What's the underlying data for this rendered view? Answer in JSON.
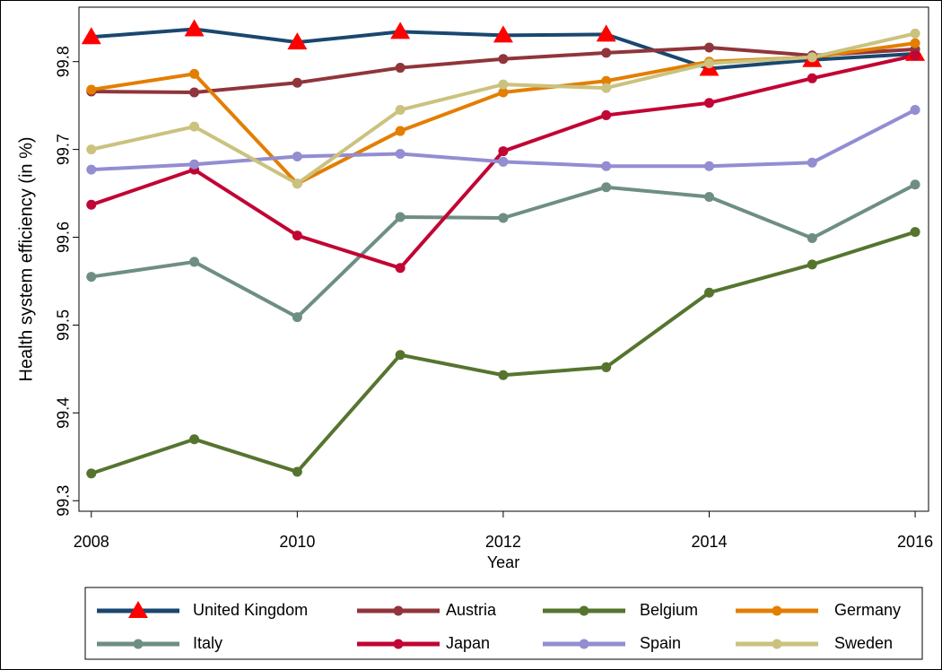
{
  "chart_data": {
    "type": "line",
    "x_label": "Year",
    "y_label": "Health system efficiency (in %)",
    "x": [
      2008,
      2009,
      2010,
      2011,
      2012,
      2013,
      2014,
      2015,
      2016
    ],
    "xlim": [
      2007.88,
      2016.13
    ],
    "xticks": [
      2008,
      2010,
      2012,
      2014,
      2016
    ],
    "ylim": [
      99.288,
      99.862
    ],
    "yticks": [
      99.3,
      99.4,
      99.5,
      99.6,
      99.7,
      99.8
    ],
    "grid": false,
    "legend": "bottom",
    "series": [
      {
        "name": "United Kingdom",
        "color": "#1a476f",
        "marker": "triangle",
        "marker_color": "#ff0000",
        "values": [
          99.828,
          99.837,
          99.822,
          99.834,
          99.83,
          99.831,
          99.792,
          99.802,
          99.809
        ]
      },
      {
        "name": "Austria",
        "color": "#90353b",
        "marker": "circle",
        "marker_color": "#90353b",
        "values": [
          99.766,
          99.765,
          99.776,
          99.793,
          99.803,
          99.81,
          99.816,
          99.807,
          99.814
        ]
      },
      {
        "name": "Belgium",
        "color": "#55752f",
        "marker": "circle",
        "marker_color": "#55752f",
        "values": [
          99.331,
          99.37,
          99.333,
          99.466,
          99.443,
          99.452,
          99.537,
          99.569,
          99.606
        ]
      },
      {
        "name": "Germany",
        "color": "#e37e00",
        "marker": "circle",
        "marker_color": "#e37e00",
        "values": [
          99.768,
          99.786,
          99.661,
          99.721,
          99.765,
          99.778,
          99.8,
          99.805,
          99.821
        ]
      },
      {
        "name": "Italy",
        "color": "#6e8e84",
        "marker": "circle",
        "marker_color": "#6e8e84",
        "values": [
          99.555,
          99.572,
          99.509,
          99.623,
          99.622,
          99.657,
          99.646,
          99.599,
          99.66
        ]
      },
      {
        "name": "Japan",
        "color": "#c10534",
        "marker": "circle",
        "marker_color": "#c10534",
        "values": [
          99.637,
          99.677,
          99.602,
          99.565,
          99.698,
          99.739,
          99.753,
          99.781,
          99.807
        ]
      },
      {
        "name": "Spain",
        "color": "#938dd2",
        "marker": "circle",
        "marker_color": "#938dd2",
        "values": [
          99.677,
          99.683,
          99.692,
          99.695,
          99.686,
          99.681,
          99.681,
          99.685,
          99.745
        ]
      },
      {
        "name": "Sweden",
        "color": "#cac27e",
        "marker": "circle",
        "marker_color": "#cac27e",
        "values": [
          99.7,
          99.726,
          99.661,
          99.745,
          99.774,
          99.77,
          99.798,
          99.805,
          99.832
        ]
      }
    ]
  }
}
